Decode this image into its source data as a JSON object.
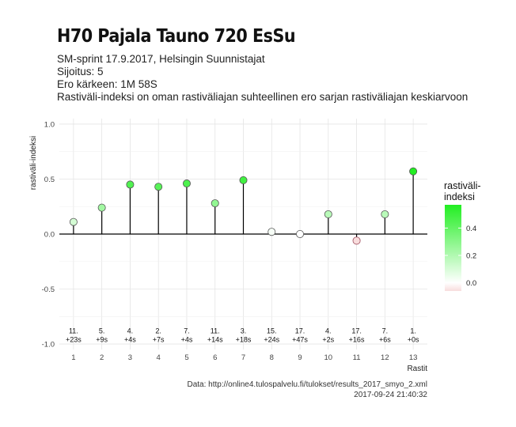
{
  "header": {
    "title": "H70 Pajala Tauno 720 EsSu",
    "subtitle_lines": [
      "SM-sprint 17.9.2017, Helsingin Suunnistajat",
      "Sijoitus: 5",
      "Ero kärkeen: 1M 58S",
      "Rastiväli-indeksi on oman rastiväliajan suhteellinen ero sarjan rastiväliajan keskiarvoon"
    ]
  },
  "caption": {
    "source": "Data: http://online4.tulospalvelu.fi/tulokset/results_2017_smyo_2.xml",
    "timestamp": "2017-09-24 21:40:32"
  },
  "chart_data": {
    "type": "lollipop",
    "xlabel": "Rastit",
    "ylabel": "rastiväli-indeksi",
    "ylim": [
      -1.05,
      1.05
    ],
    "yticks": [
      -1.0,
      -0.5,
      0.0,
      0.5,
      1.0
    ],
    "ytick_labels": [
      "-1.0",
      "-0.5",
      "0.0",
      "0.5",
      "1.0"
    ],
    "x": [
      1,
      2,
      3,
      4,
      5,
      6,
      7,
      8,
      9,
      10,
      11,
      12,
      13
    ],
    "values": [
      0.11,
      0.24,
      0.45,
      0.43,
      0.46,
      0.28,
      0.49,
      0.02,
      0.0,
      0.18,
      -0.06,
      0.18,
      0.57
    ],
    "labels": [
      [
        "11.",
        "+23s"
      ],
      [
        "5.",
        "+9s"
      ],
      [
        "4.",
        "+4s"
      ],
      [
        "2.",
        "+7s"
      ],
      [
        "7.",
        "+4s"
      ],
      [
        "11.",
        "+14s"
      ],
      [
        "3.",
        "+18s"
      ],
      [
        "15.",
        "+24s"
      ],
      [
        "17.",
        "+47s"
      ],
      [
        "4.",
        "+2s"
      ],
      [
        "17.",
        "+16s"
      ],
      [
        "7.",
        "+6s"
      ],
      [
        "1.",
        "+0s"
      ]
    ],
    "label_y": -0.93,
    "grid": true,
    "legend": {
      "title_lines": [
        "rastiväli-",
        "indeksi"
      ],
      "ticks": [
        0.0,
        0.2,
        0.4
      ],
      "tick_labels": [
        "0.0",
        "0.2",
        "0.4"
      ],
      "range": [
        -0.06,
        0.57
      ],
      "colors": {
        "low": "#f8dcdc",
        "mid": "#ffffff",
        "high": "#22ee22"
      },
      "placement": "right"
    }
  }
}
